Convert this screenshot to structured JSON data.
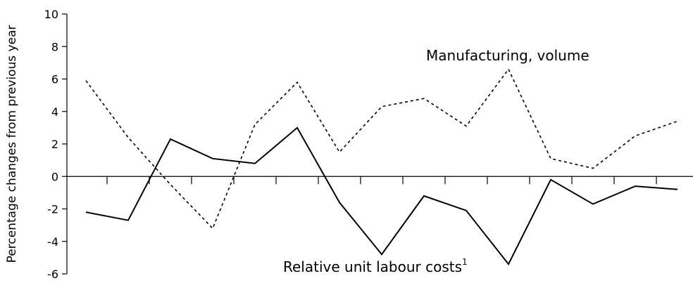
{
  "chart_data": {
    "type": "line",
    "y_label": "Percentage changes from previous year",
    "categories": [
      null,
      null,
      null,
      null,
      null,
      null,
      null,
      null,
      null,
      null,
      null,
      null,
      null,
      null,
      null
    ],
    "series": [
      {
        "name": "Manufacturing, volume",
        "color": "#000000",
        "dash": true,
        "values": [
          5.9,
          2.4,
          -0.5,
          -3.2,
          3.2,
          5.8,
          1.5,
          4.3,
          4.8,
          3.1,
          6.6,
          1.1,
          0.5,
          2.5,
          3.4
        ]
      },
      {
        "name": "Relative unit labour costs",
        "footnote": "1",
        "color": "#000000",
        "dash": false,
        "values": [
          -2.2,
          -2.7,
          2.3,
          1.1,
          0.8,
          3.0,
          -1.6,
          -4.8,
          -1.2,
          -2.1,
          -5.4,
          -0.2,
          -1.7,
          -0.6,
          -0.8
        ]
      }
    ],
    "ylim": [
      -6,
      10
    ],
    "yticks": [
      -6,
      -4,
      -2,
      0,
      2,
      4,
      6,
      8,
      10
    ],
    "grid": false
  }
}
